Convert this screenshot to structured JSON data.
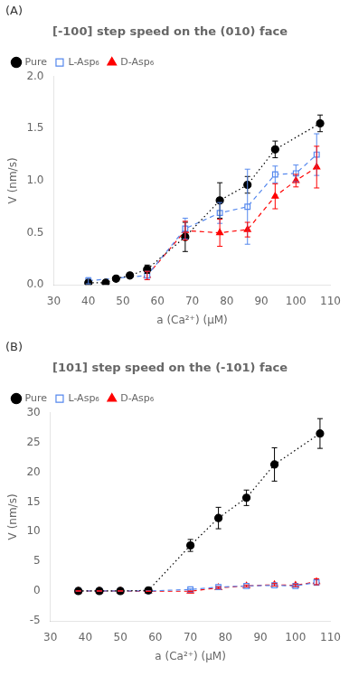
{
  "chart_data": [
    {
      "type": "line",
      "title": "[-100] step speed on the (010) face",
      "annotations": [
        "(A)"
      ],
      "x_label": "a (Ca²⁺) (μM)",
      "y_label": "V (nm/s)",
      "xlim": [
        30,
        110
      ],
      "xticks": [
        30,
        40,
        50,
        60,
        70,
        80,
        90,
        100,
        110
      ],
      "ylim": [
        0,
        2.0
      ],
      "yticks": [
        {
          "value": 0,
          "label": "0.0"
        },
        0.5,
        {
          "value": 1,
          "label": "1.0"
        },
        1.5,
        {
          "value": 2,
          "label": "2.0"
        }
      ],
      "grid": false,
      "legend": "upper left",
      "series": [
        {
          "name": "Pure",
          "color": "black",
          "marker": "circle",
          "line_style": "dotted",
          "x": [
            40,
            45,
            48,
            52,
            57,
            68,
            78,
            86,
            94,
            107
          ],
          "values": [
            0.02,
            0.02,
            0.06,
            0.09,
            0.15,
            0.46,
            0.81,
            0.96,
            1.3,
            1.55
          ],
          "errors": [
            0.01,
            0.01,
            0.02,
            0.02,
            0.04,
            0.14,
            0.17,
            0.08,
            0.08,
            0.08
          ]
        },
        {
          "name": "L-Asp₆",
          "color": "#5588ee",
          "marker": "open-square",
          "line_style": "dashed",
          "x": [
            40,
            57,
            68,
            78,
            86,
            94,
            100,
            106
          ],
          "values": [
            0.04,
            0.09,
            0.54,
            0.69,
            0.75,
            1.06,
            1.07,
            1.25
          ],
          "errors": [
            0.03,
            0.04,
            0.1,
            0.1,
            0.36,
            0.08,
            0.08,
            0.2
          ]
        },
        {
          "name": "D-Asp₆",
          "color": "red",
          "marker": "triangle",
          "line_style": "dashed",
          "x": [
            57,
            68,
            78,
            86,
            94,
            100,
            106
          ],
          "values": [
            0.09,
            0.52,
            0.5,
            0.53,
            0.85,
            1.0,
            1.13
          ],
          "errors": [
            0.04,
            0.09,
            0.13,
            0.07,
            0.12,
            0.06,
            0.2
          ]
        }
      ]
    },
    {
      "type": "line",
      "title": "[101] step speed on the (-101) face",
      "annotations": [
        "(B)"
      ],
      "x_label": "a (Ca²⁺) (μM)",
      "y_label": "V (nm/s)",
      "xlim": [
        30,
        110
      ],
      "xticks": [
        30,
        40,
        50,
        60,
        70,
        80,
        90,
        100,
        110
      ],
      "ylim": [
        -5,
        30
      ],
      "yticks": [
        -5,
        0,
        5,
        10,
        15,
        20,
        25,
        30
      ],
      "grid": false,
      "legend": "upper left",
      "series": [
        {
          "name": "Pure",
          "color": "black",
          "marker": "circle",
          "line_style": "dotted",
          "x": [
            38,
            44,
            50,
            58,
            70,
            78,
            86,
            94,
            107
          ],
          "values": [
            0.05,
            0.05,
            0.05,
            0.15,
            7.7,
            12.3,
            15.7,
            21.3,
            26.5
          ],
          "errors": [
            0.05,
            0.05,
            0.05,
            0.1,
            1.0,
            1.8,
            1.3,
            2.8,
            2.5
          ]
        },
        {
          "name": "L-Asp₆",
          "color": "#5588ee",
          "marker": "open-square",
          "line_style": "dashed",
          "x": [
            38,
            44,
            50,
            58,
            70,
            78,
            86,
            94,
            100,
            106
          ],
          "values": [
            0.05,
            0.05,
            0.05,
            0.05,
            0.3,
            0.7,
            0.9,
            1.0,
            0.9,
            1.5
          ],
          "errors": [
            0.03,
            0.03,
            0.03,
            0.03,
            0.1,
            0.1,
            0.15,
            0.15,
            0.15,
            0.5
          ]
        },
        {
          "name": "D-Asp₆",
          "color": "red",
          "marker": "triangle",
          "line_style": "dashed",
          "x": [
            38,
            44,
            50,
            58,
            70,
            78,
            86,
            94,
            100,
            106
          ],
          "values": [
            0.05,
            0.05,
            0.05,
            0.0,
            0.0,
            0.6,
            0.9,
            1.1,
            1.0,
            1.6
          ],
          "errors": [
            0.03,
            0.03,
            0.03,
            0.03,
            0.05,
            0.15,
            0.15,
            0.2,
            0.2,
            0.5
          ]
        }
      ]
    }
  ]
}
